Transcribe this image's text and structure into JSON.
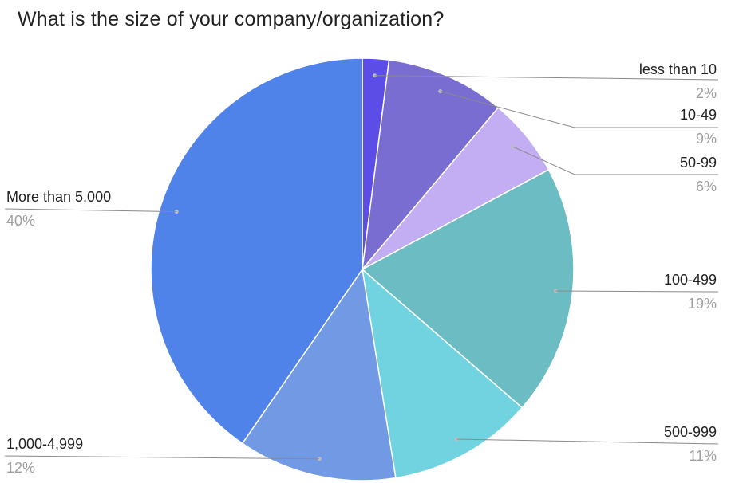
{
  "chart_data": {
    "type": "pie",
    "title": "What is the size of your company/organization?",
    "start_angle_deg": 0,
    "direction": "clockwise",
    "slices": [
      {
        "label": "less than 10",
        "value": 2,
        "pct_label": "2%",
        "color": "#5b4de6"
      },
      {
        "label": "10-49",
        "value": 9,
        "pct_label": "9%",
        "color": "#7a6dd2"
      },
      {
        "label": "50-99",
        "value": 6,
        "pct_label": "6%",
        "color": "#c3adf3"
      },
      {
        "label": "100-499",
        "value": 19,
        "pct_label": "19%",
        "color": "#6cbdc3"
      },
      {
        "label": "500-999",
        "value": 11,
        "pct_label": "11%",
        "color": "#72d3e0"
      },
      {
        "label": "1,000-4,999",
        "value": 12,
        "pct_label": "12%",
        "color": "#7299e3"
      },
      {
        "label": "More than 5,000",
        "value": 40,
        "pct_label": "40%",
        "color": "#5083e9"
      }
    ]
  }
}
